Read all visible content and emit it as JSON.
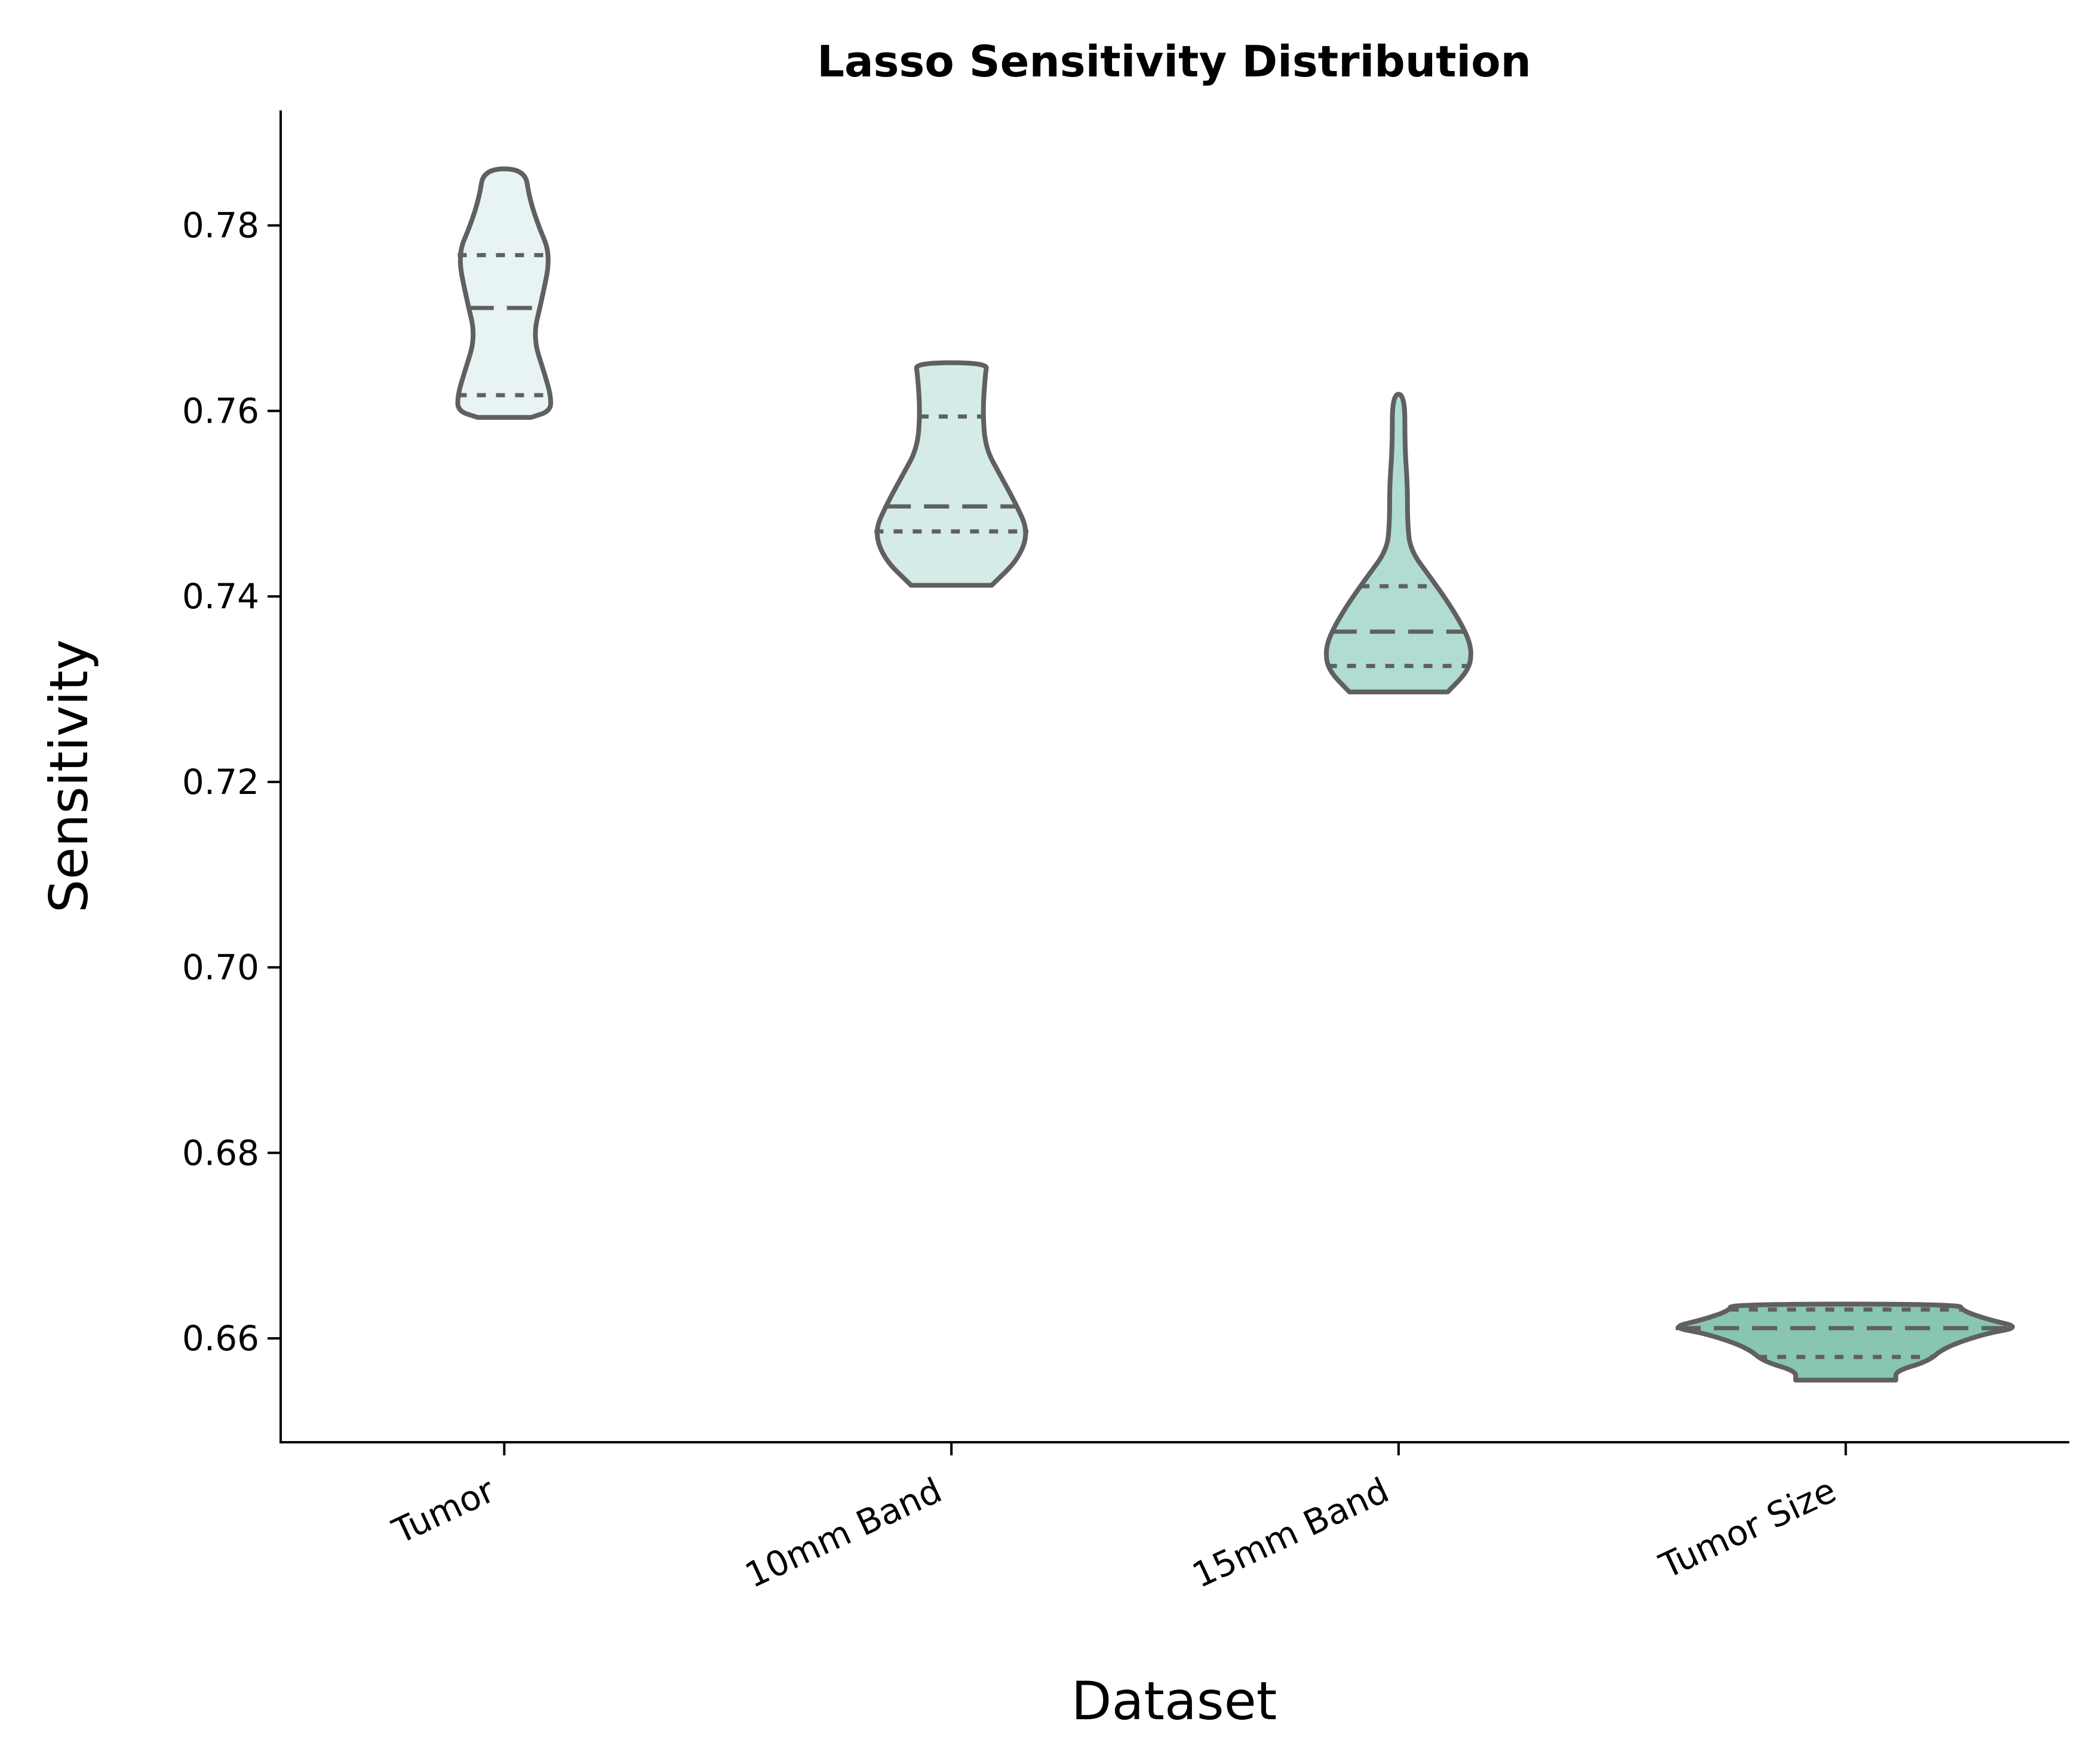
{
  "chart_data": {
    "type": "violin",
    "title": "Lasso Sensitivity Distribution",
    "xlabel": "Dataset",
    "ylabel": "Sensitivity",
    "ylim": [
      0.6488,
      0.7924
    ],
    "yticks": [
      "0.66",
      "0.68",
      "0.70",
      "0.72",
      "0.74",
      "0.76",
      "0.78"
    ],
    "ytick_values": [
      0.66,
      0.68,
      0.7,
      0.72,
      0.74,
      0.76,
      0.78
    ],
    "grid": false,
    "inner": "quartile",
    "categories": [
      "Tumor",
      "10mm Band",
      "15mm Band",
      "Tumor Size"
    ],
    "series": [
      {
        "category": "Tumor",
        "min": 0.7593,
        "max": 0.7861,
        "q1": 0.7617,
        "median": 0.7711,
        "q3": 0.7768,
        "color": "#e8f4f4",
        "profile": [
          [
            0.7593,
            0.3
          ],
          [
            0.76,
            0.52
          ],
          [
            0.7617,
            0.52
          ],
          [
            0.764,
            0.45
          ],
          [
            0.768,
            0.32
          ],
          [
            0.772,
            0.42
          ],
          [
            0.7768,
            0.52
          ],
          [
            0.78,
            0.38
          ],
          [
            0.783,
            0.28
          ],
          [
            0.7861,
            0.23
          ]
        ]
      },
      {
        "category": "10mm Band",
        "min": 0.7412,
        "max": 0.7652,
        "q1": 0.747,
        "median": 0.7497,
        "q3": 0.7594,
        "color": "#d5ebe8",
        "profile": [
          [
            0.7412,
            0.45
          ],
          [
            0.744,
            0.75
          ],
          [
            0.747,
            0.86
          ],
          [
            0.75,
            0.72
          ],
          [
            0.753,
            0.55
          ],
          [
            0.756,
            0.38
          ],
          [
            0.76,
            0.35
          ],
          [
            0.764,
            0.38
          ],
          [
            0.7652,
            0.4
          ]
        ]
      },
      {
        "category": "15mm Band",
        "min": 0.7297,
        "max": 0.7618,
        "q1": 0.7325,
        "median": 0.7362,
        "q3": 0.7411,
        "color": "#b0dcd3",
        "profile": [
          [
            0.7297,
            0.55
          ],
          [
            0.732,
            0.78
          ],
          [
            0.734,
            0.82
          ],
          [
            0.736,
            0.76
          ],
          [
            0.739,
            0.58
          ],
          [
            0.742,
            0.36
          ],
          [
            0.745,
            0.13
          ],
          [
            0.748,
            0.1
          ],
          [
            0.752,
            0.1
          ],
          [
            0.756,
            0.07
          ],
          [
            0.7618,
            0.07
          ]
        ]
      },
      {
        "category": "Tumor Size",
        "min": 0.6555,
        "max": 0.6637,
        "q1": 0.658,
        "median": 0.6611,
        "q3": 0.6631,
        "color": "#88c5b2",
        "profile": [
          [
            0.6555,
            0.56
          ],
          [
            0.6565,
            0.56
          ],
          [
            0.6575,
            0.92
          ],
          [
            0.659,
            1.1
          ],
          [
            0.6605,
            1.55
          ],
          [
            0.6612,
            1.96
          ],
          [
            0.662,
            1.6
          ],
          [
            0.663,
            1.3
          ],
          [
            0.6637,
            1.28
          ]
        ]
      }
    ]
  }
}
